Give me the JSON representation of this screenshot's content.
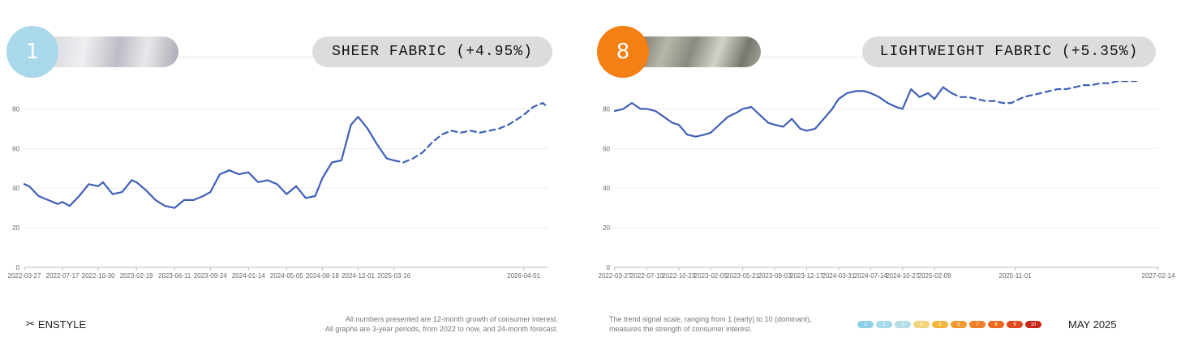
{
  "panels": [
    {
      "rank": "1",
      "title": "SHEER FABRIC (+4.95%)",
      "badge_color": "#a8d8ea",
      "thumbnail": "sheer-fabric-thumbnail",
      "line_color": "#3f5fb8"
    },
    {
      "rank": "8",
      "title": "LIGHTWEIGHT FABRIC (+5.35%)",
      "badge_color": "#f47f14",
      "thumbnail": "lightweight-fabric-thumbnail",
      "line_color": "#3f5fb8"
    }
  ],
  "chart_data": [
    {
      "type": "line",
      "ylim": [
        0,
        90
      ],
      "yticks": [
        0,
        20,
        40,
        60,
        80
      ],
      "xlim": [
        "2022-03-27",
        "2026-06-10"
      ],
      "xticks": [
        "2022-03-27",
        "2022-07-17",
        "2022-10-30",
        "2023-02-19",
        "2023-06-11",
        "2023-09-24",
        "2024-01-14",
        "2024-05-05",
        "2024-08-18",
        "2024-12-01",
        "2025-03-16",
        "2026-04-01"
      ],
      "grid": true,
      "series": [
        {
          "style": "solid",
          "x": [
            "2022-03-27",
            "2022-04-10",
            "2022-05-08",
            "2022-06-05",
            "2022-07-03",
            "2022-07-17",
            "2022-08-07",
            "2022-09-04",
            "2022-10-02",
            "2022-10-30",
            "2022-11-13",
            "2022-12-11",
            "2023-01-08",
            "2023-02-05",
            "2023-02-19",
            "2023-03-19",
            "2023-04-16",
            "2023-05-14",
            "2023-06-11",
            "2023-07-09",
            "2023-08-06",
            "2023-09-03",
            "2023-09-24",
            "2023-10-22",
            "2023-11-19",
            "2023-12-17",
            "2024-01-14",
            "2024-02-11",
            "2024-03-10",
            "2024-04-07",
            "2024-05-05",
            "2024-06-02",
            "2024-06-30",
            "2024-07-28",
            "2024-08-18",
            "2024-09-15",
            "2024-10-13",
            "2024-11-10",
            "2024-12-01",
            "2024-12-29",
            "2025-01-26",
            "2025-02-23",
            "2025-03-16"
          ],
          "y": [
            42,
            41,
            36,
            34,
            32,
            33,
            31,
            36,
            42,
            41,
            43,
            37,
            38,
            44,
            43,
            39,
            34,
            31,
            30,
            34,
            34,
            36,
            38,
            47,
            49,
            47,
            48,
            43,
            44,
            42,
            37,
            41,
            35,
            36,
            45,
            53,
            54,
            72,
            76,
            70,
            62,
            55,
            54
          ]
        },
        {
          "style": "dashed",
          "x": [
            "2025-03-16",
            "2025-04-13",
            "2025-05-11",
            "2025-06-08",
            "2025-07-06",
            "2025-08-03",
            "2025-08-31",
            "2025-09-28",
            "2025-10-26",
            "2025-11-23",
            "2025-12-21",
            "2026-01-18",
            "2026-02-15",
            "2026-03-15",
            "2026-04-01",
            "2026-04-29",
            "2026-05-27",
            "2026-06-10"
          ],
          "y": [
            54,
            53,
            55,
            58,
            63,
            67,
            69,
            68,
            69,
            68,
            69,
            70,
            72,
            75,
            77,
            81,
            83,
            81
          ]
        }
      ]
    },
    {
      "type": "line",
      "ylim": [
        0,
        90
      ],
      "yticks": [
        0,
        20,
        40,
        60,
        80
      ],
      "xlim": [
        "2022-03-27",
        "2027-02-14"
      ],
      "xticks": [
        "2022-03-27",
        "2022-07-10",
        "2022-10-23",
        "2023-02-05",
        "2023-05-21",
        "2023-09-03",
        "2023-12-17",
        "2024-03-31",
        "2024-07-14",
        "2024-10-27",
        "2025-02-09",
        "2025-11-01",
        "2027-02-14"
      ],
      "grid": true,
      "series": [
        {
          "style": "solid",
          "x": [
            "2022-03-27",
            "2022-04-24",
            "2022-05-22",
            "2022-06-19",
            "2022-07-10",
            "2022-08-07",
            "2022-09-04",
            "2022-10-02",
            "2022-10-23",
            "2022-11-20",
            "2022-12-18",
            "2023-01-15",
            "2023-02-05",
            "2023-03-05",
            "2023-04-02",
            "2023-04-30",
            "2023-05-21",
            "2023-06-18",
            "2023-07-16",
            "2023-08-13",
            "2023-09-03",
            "2023-10-01",
            "2023-10-29",
            "2023-11-26",
            "2023-12-17",
            "2024-01-14",
            "2024-02-11",
            "2024-03-10",
            "2024-03-31",
            "2024-04-28",
            "2024-05-26",
            "2024-06-23",
            "2024-07-14",
            "2024-08-11",
            "2024-09-08",
            "2024-10-06",
            "2024-10-27",
            "2024-11-24",
            "2024-12-22",
            "2025-01-19",
            "2025-02-09",
            "2025-03-09",
            "2025-04-06"
          ],
          "y": [
            79,
            80,
            83,
            80,
            80,
            79,
            76,
            73,
            72,
            67,
            66,
            67,
            68,
            72,
            76,
            78,
            80,
            81,
            77,
            73,
            72,
            71,
            75,
            70,
            69,
            70,
            75,
            80,
            85,
            88,
            89,
            89,
            88,
            86,
            83,
            81,
            80,
            90,
            86,
            88,
            85,
            91,
            88
          ]
        },
        {
          "style": "dashed",
          "x": [
            "2025-04-06",
            "2025-05-04",
            "2025-06-01",
            "2025-06-29",
            "2025-07-27",
            "2025-08-24",
            "2025-09-21",
            "2025-10-19",
            "2025-11-01",
            "2025-11-29",
            "2025-12-27",
            "2026-01-24",
            "2026-02-21",
            "2026-03-21",
            "2026-04-18",
            "2026-05-16",
            "2026-06-13",
            "2026-07-11",
            "2026-08-08",
            "2026-09-05",
            "2026-10-03",
            "2026-10-31",
            "2026-11-28",
            "2026-12-26",
            "2027-01-23",
            "2027-02-14"
          ],
          "y": [
            88,
            86,
            86,
            85,
            84,
            84,
            83,
            83,
            84,
            86,
            87,
            88,
            89,
            90,
            90,
            91,
            92,
            92,
            93,
            93,
            94,
            94,
            94,
            95,
            95,
            95
          ]
        }
      ]
    }
  ],
  "footer": {
    "logo": "ENSTYLE",
    "note_left_1": "All numbers presented are 12-month growth of consumer interest.",
    "note_left_2": "All graphs are 3-year periods, from 2022 to now, and 24-month forecast.",
    "note_right_1": "The trend signal scale, ranging from 1 (early) to 10 (dominant),",
    "note_right_2": "measures the strength of consumer interest.",
    "scale": [
      {
        "label": "1",
        "color": "#8fd0e8"
      },
      {
        "label": "2",
        "color": "#a6d9ea"
      },
      {
        "label": "3",
        "color": "#b5dde8"
      },
      {
        "label": "4",
        "color": "#f2d27a"
      },
      {
        "label": "5",
        "color": "#f3b63c"
      },
      {
        "label": "6",
        "color": "#f29a2e"
      },
      {
        "label": "7",
        "color": "#f07f26"
      },
      {
        "label": "8",
        "color": "#ea6a22"
      },
      {
        "label": "9",
        "color": "#df4a20"
      },
      {
        "label": "10",
        "color": "#c7261c"
      }
    ],
    "date": "MAY 2025"
  }
}
